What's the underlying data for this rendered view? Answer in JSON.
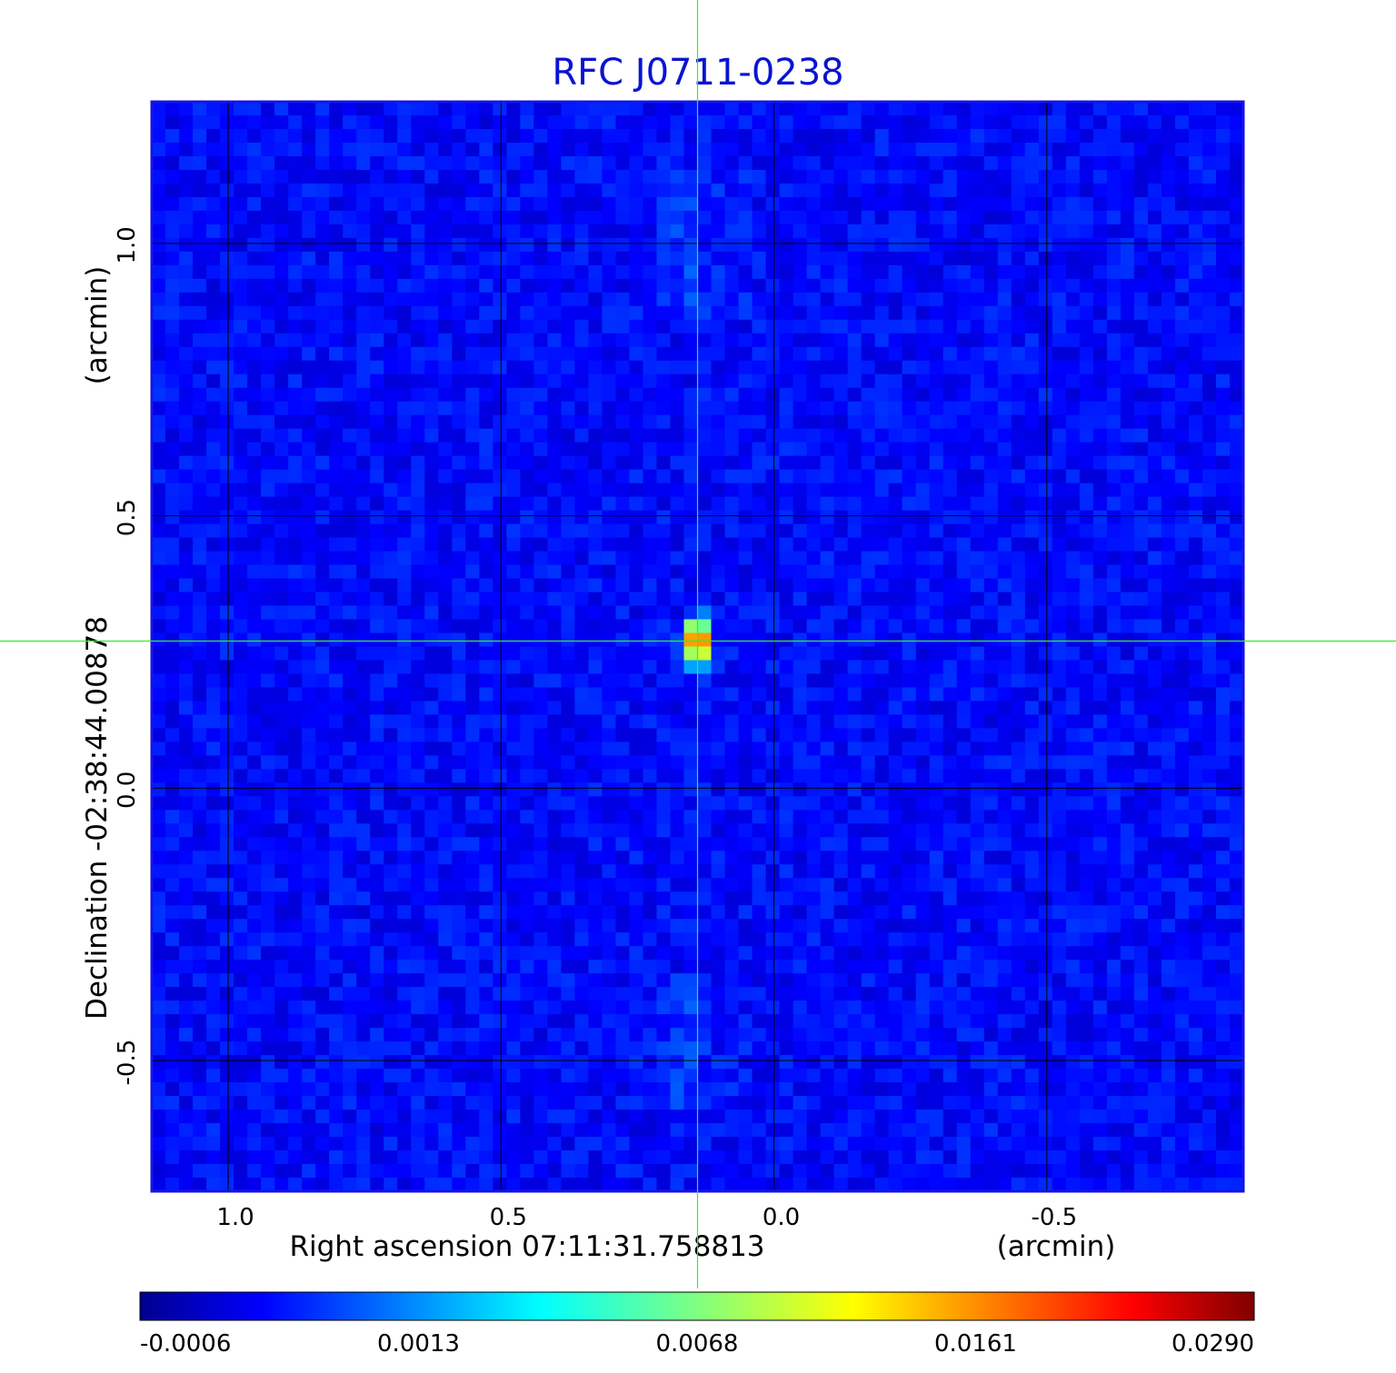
{
  "chart_data": {
    "type": "heatmap",
    "title": "RFC J0711-0238",
    "xlabel": "Right ascension  07:11:31.758813",
    "xunit": "(arcmin)",
    "ylabel": "Declination  -02:38:44.00878",
    "yunit": "(arcmin)",
    "x_reversed": true,
    "xlim": [
      1.14,
      -0.86
    ],
    "ylim": [
      -0.74,
      1.26
    ],
    "x_ticks": [
      "1.0",
      "0.5",
      "0.0",
      "-0.5"
    ],
    "x_tick_values": [
      1.0,
      0.5,
      0.0,
      -0.5
    ],
    "y_ticks": [
      "1.0",
      "0.5",
      "0.0",
      "-0.5"
    ],
    "y_tick_values": [
      1.0,
      0.5,
      0.0,
      -0.5
    ],
    "grid": true,
    "crosshair": {
      "x": 0.14,
      "y": 0.27,
      "color": "#33ee33"
    },
    "source": {
      "x": 0.14,
      "y": 0.27,
      "peak": 0.029
    },
    "colormap": "jet",
    "colorbar": {
      "orientation": "horizontal",
      "ticks": [
        "-0.0006",
        "0.0013",
        "0.0068",
        "0.0161",
        "0.0290"
      ],
      "tick_values": [
        -0.0006,
        0.0013,
        0.0068,
        0.0161,
        0.029
      ]
    },
    "colors": {
      "title": "#0a14d2",
      "frame": "#1414e6",
      "grid": "#000000"
    }
  }
}
